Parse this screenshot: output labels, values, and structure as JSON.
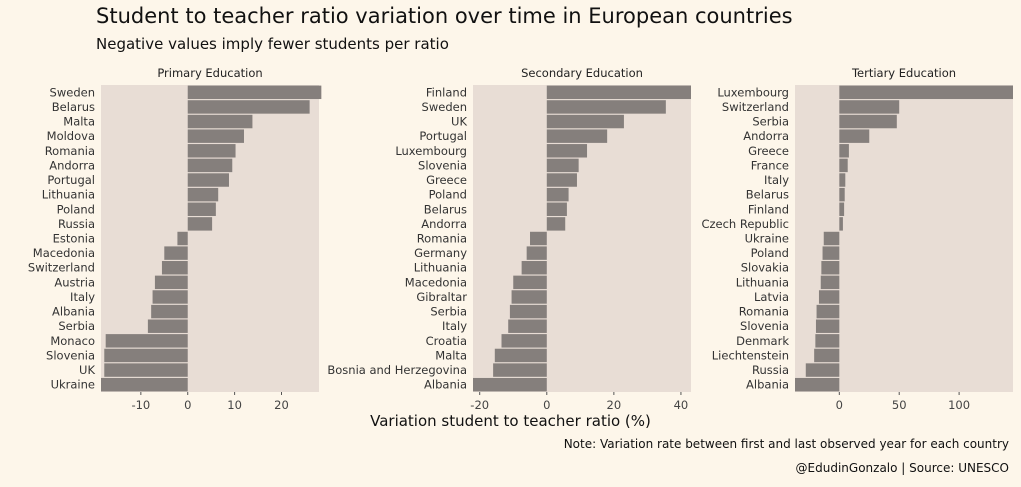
{
  "chart_data": {
    "title": "Student to teacher ratio variation over time in European countries",
    "subtitle": "Negative values imply fewer students per ratio",
    "xlabel": "Variation student to teacher ratio (%)",
    "note": "Note: Variation rate between first and last observed year for each country",
    "credit": "@EdudinGonzalo | Source: UNESCO",
    "colors": {
      "bar": "#857f7c",
      "panel": "#e8ddd5",
      "background": "#fdf6ea"
    },
    "panels": [
      {
        "type": "bar",
        "orientation": "horizontal",
        "title": "Primary Education",
        "xlim": [
          -18.5,
          28
        ],
        "ticks": [
          -10,
          0,
          10,
          20
        ],
        "tick_labels": [
          "-10",
          "0",
          "10",
          "20"
        ],
        "categories": [
          "Sweden",
          "Belarus",
          "Malta",
          "Moldova",
          "Romania",
          "Andorra",
          "Portugal",
          "Lithuania",
          "Poland",
          "Russia",
          "Estonia",
          "Macedonia",
          "Switzerland",
          "Austria",
          "Italy",
          "Albania",
          "Serbia",
          "Monaco",
          "Slovenia",
          "UK",
          "Ukraine"
        ],
        "values": [
          28.5,
          26,
          13.8,
          12,
          10.2,
          9.5,
          8.8,
          6.5,
          6,
          5.2,
          -2.2,
          -5,
          -5.5,
          -7,
          -7.5,
          -7.8,
          -8.5,
          -17.5,
          -17.8,
          -17.8,
          -18.5
        ]
      },
      {
        "type": "bar",
        "orientation": "horizontal",
        "title": "Secondary Education",
        "xlim": [
          -22,
          43
        ],
        "ticks": [
          -20,
          0,
          20,
          40
        ],
        "tick_labels": [
          "-20",
          "0",
          "20",
          "40"
        ],
        "categories": [
          "Finland",
          "Sweden",
          "UK",
          "Portugal",
          "Luxembourg",
          "Slovenia",
          "Greece",
          "Poland",
          "Belarus",
          "Andorra",
          "Romania",
          "Germany",
          "Lithuania",
          "Macedonia",
          "Gibraltar",
          "Serbia",
          "Italy",
          "Croatia",
          "Malta",
          "Bosnia and Herzegovina",
          "Albania"
        ],
        "values": [
          43,
          35.5,
          23,
          18,
          12,
          9.5,
          9,
          6.5,
          6,
          5.5,
          -5,
          -6,
          -7.5,
          -10,
          -10.5,
          -11,
          -11.5,
          -13.5,
          -15.5,
          -16,
          -22
        ]
      },
      {
        "type": "bar",
        "orientation": "horizontal",
        "title": "Tertiary Education",
        "xlim": [
          -37,
          145
        ],
        "ticks": [
          0,
          50,
          100
        ],
        "tick_labels": [
          "0",
          "50",
          "100"
        ],
        "categories": [
          "Luxembourg",
          "Switzerland",
          "Serbia",
          "Andorra",
          "Greece",
          "France",
          "Italy",
          "Belarus",
          "Finland",
          "Czech Republic",
          "Ukraine",
          "Poland",
          "Slovakia",
          "Lithuania",
          "Latvia",
          "Romania",
          "Slovenia",
          "Denmark",
          "Liechtenstein",
          "Russia",
          "Albania"
        ],
        "values": [
          145,
          50,
          48,
          25,
          8,
          7,
          5,
          4.5,
          4,
          3,
          -13,
          -14,
          -15,
          -15.5,
          -17,
          -19,
          -19.5,
          -20,
          -21,
          -28,
          -37
        ]
      }
    ]
  }
}
